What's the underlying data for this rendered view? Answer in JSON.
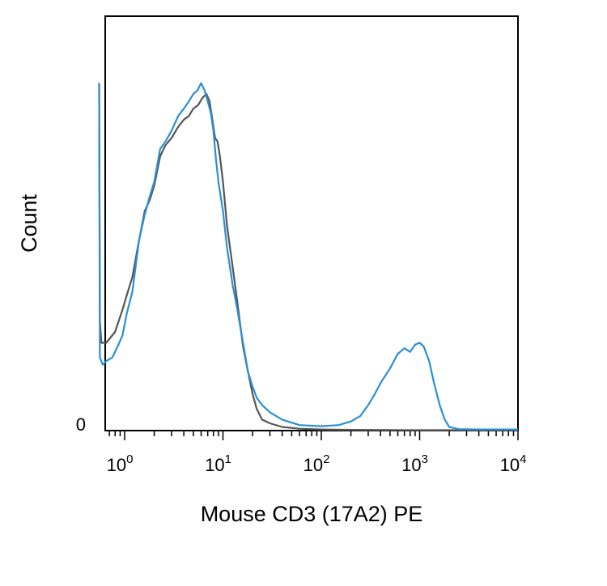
{
  "chart_data": {
    "type": "line",
    "title": "",
    "xlabel": "Mouse CD3 (17A2) PE",
    "ylabel": "Count",
    "x_scale": "log10",
    "xlim": [
      0.5,
      10000
    ],
    "ylim": [
      0,
      100
    ],
    "grid": false,
    "legend": "none",
    "x_ticks": [
      {
        "base": "10",
        "exp": "0",
        "value": 1
      },
      {
        "base": "10",
        "exp": "1",
        "value": 10
      },
      {
        "base": "10",
        "exp": "2",
        "value": 100
      },
      {
        "base": "10",
        "exp": "3",
        "value": 1000
      },
      {
        "base": "10",
        "exp": "4",
        "value": 10000
      }
    ],
    "y_ticks": [
      {
        "label": "0",
        "value": 0
      }
    ],
    "series": [
      {
        "color": "#555555",
        "points": [
          [
            0.55,
            95
          ],
          [
            0.56,
            30
          ],
          [
            0.58,
            24
          ],
          [
            0.65,
            24
          ],
          [
            0.8,
            27
          ],
          [
            0.95,
            33
          ],
          [
            1.05,
            37
          ],
          [
            1.2,
            42
          ],
          [
            1.4,
            52
          ],
          [
            1.6,
            60
          ],
          [
            1.8,
            63
          ],
          [
            2.0,
            67
          ],
          [
            2.3,
            75
          ],
          [
            2.6,
            78
          ],
          [
            3.0,
            80
          ],
          [
            3.5,
            83
          ],
          [
            4.0,
            85
          ],
          [
            4.5,
            86
          ],
          [
            5.0,
            88
          ],
          [
            5.6,
            89
          ],
          [
            6.2,
            91
          ],
          [
            6.8,
            92
          ],
          [
            7.3,
            90
          ],
          [
            7.8,
            85
          ],
          [
            8.3,
            80
          ],
          [
            8.8,
            79
          ],
          [
            9.3,
            75
          ],
          [
            10.0,
            68
          ],
          [
            11.0,
            56
          ],
          [
            12.5,
            45
          ],
          [
            14.0,
            35
          ],
          [
            16.0,
            23
          ],
          [
            18.0,
            16
          ],
          [
            20.0,
            10
          ],
          [
            22.0,
            6
          ],
          [
            25.0,
            3
          ],
          [
            30.0,
            2
          ],
          [
            40.0,
            1
          ],
          [
            60.0,
            0.5
          ],
          [
            100,
            0.3
          ],
          [
            200,
            0.2
          ],
          [
            1000,
            0.1
          ],
          [
            10000,
            0.1
          ]
        ]
      },
      {
        "color": "#2a8fd6",
        "points": [
          [
            0.55,
            95
          ],
          [
            0.56,
            20
          ],
          [
            0.6,
            18
          ],
          [
            0.65,
            19
          ],
          [
            0.75,
            20
          ],
          [
            0.85,
            23
          ],
          [
            0.95,
            26
          ],
          [
            1.05,
            32
          ],
          [
            1.2,
            38
          ],
          [
            1.4,
            52
          ],
          [
            1.6,
            59
          ],
          [
            1.8,
            64
          ],
          [
            2.0,
            68
          ],
          [
            2.3,
            77
          ],
          [
            2.6,
            79
          ],
          [
            3.0,
            82
          ],
          [
            3.5,
            86
          ],
          [
            4.0,
            88
          ],
          [
            4.5,
            90
          ],
          [
            5.0,
            92
          ],
          [
            5.5,
            93
          ],
          [
            6.0,
            95
          ],
          [
            6.5,
            93
          ],
          [
            7.0,
            90
          ],
          [
            7.5,
            87
          ],
          [
            8.0,
            82
          ],
          [
            8.5,
            74
          ],
          [
            9.0,
            68
          ],
          [
            10.0,
            60
          ],
          [
            11.0,
            50
          ],
          [
            12.5,
            40
          ],
          [
            14.0,
            33
          ],
          [
            16.0,
            24
          ],
          [
            18.0,
            16
          ],
          [
            20.0,
            12
          ],
          [
            22.0,
            9
          ],
          [
            25.0,
            7
          ],
          [
            30.0,
            5
          ],
          [
            40.0,
            3
          ],
          [
            60.0,
            1.5
          ],
          [
            100,
            1.2
          ],
          [
            150,
            1.5
          ],
          [
            200,
            2.5
          ],
          [
            250,
            4
          ],
          [
            300,
            7
          ],
          [
            350,
            10
          ],
          [
            400,
            13
          ],
          [
            500,
            17
          ],
          [
            600,
            21
          ],
          [
            700,
            22.5
          ],
          [
            800,
            21.5
          ],
          [
            900,
            23.5
          ],
          [
            1000,
            24
          ],
          [
            1100,
            23
          ],
          [
            1250,
            19
          ],
          [
            1400,
            13
          ],
          [
            1600,
            7
          ],
          [
            1800,
            3
          ],
          [
            2000,
            1
          ],
          [
            2500,
            0.4
          ],
          [
            4000,
            0.3
          ],
          [
            10000,
            0.3
          ]
        ]
      }
    ]
  }
}
